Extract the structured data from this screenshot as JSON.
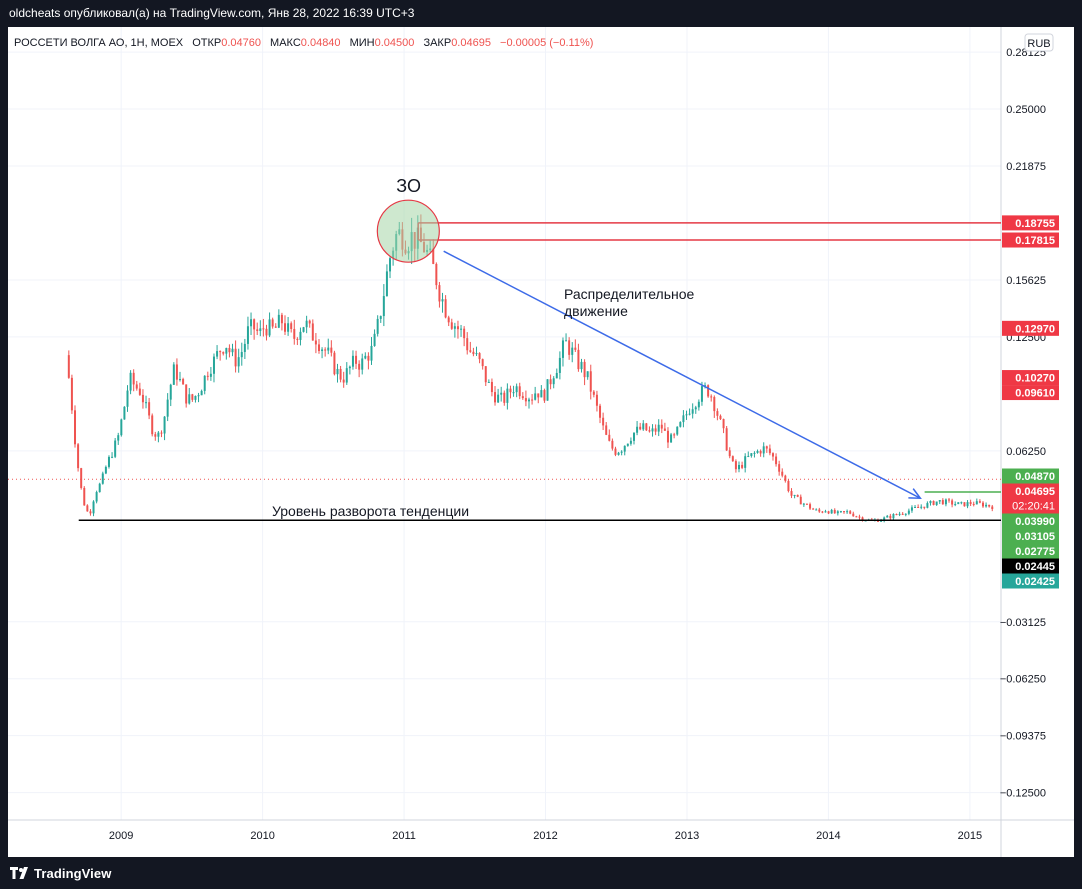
{
  "header": {
    "author_line": "oldcheats опубликовал(а) на TradingView.com, Янв 28, 2022 16:39 UTC+3"
  },
  "legend": {
    "symbol": "РОССЕТИ ВОЛГА АО, 1H, MOEX",
    "open_label": "ОТКР",
    "open_value": "0.04760",
    "high_label": "МАКС",
    "high_value": "0.04840",
    "low_label": "МИН",
    "low_value": "0.04500",
    "close_label": "ЗАКР",
    "close_value": "0.04695",
    "change": "−0.00005 (−0.11%)"
  },
  "currency": "RUB",
  "footer": {
    "brand": "TradingView"
  },
  "annotations": {
    "circle_label": "ЗО",
    "distribution": [
      "Распределительное",
      "движение"
    ],
    "reversal": "Уровень разворота тенденции"
  },
  "colors": {
    "up": "#26a69a",
    "down": "#ef5350",
    "trend_arrow": "#3d6be8",
    "level_line": "#e53945",
    "support_line": "#000000",
    "circle_fill": "#a5d6a7",
    "axis_text": "#131722",
    "grid": "#f0f3fa"
  },
  "price_badges": [
    {
      "label": "0.18755",
      "price": 0.18755,
      "color": "#ef3845",
      "text_color": "#ffffff"
    },
    {
      "label": "0.17815",
      "price": 0.17815,
      "color": "#ef3845",
      "text_color": "#ffffff"
    },
    {
      "label": "0.12970",
      "price": 0.1297,
      "color": "#ef3845",
      "text_color": "#ffffff"
    },
    {
      "label": "0.10270",
      "price": 0.1027,
      "color": "#ef3845",
      "text_color": "#ffffff"
    },
    {
      "label": "0.09610",
      "price": 0.0961,
      "color": "#ef3845",
      "text_color": "#ffffff"
    },
    {
      "label": "0.04870",
      "price": 0.0487,
      "color": "#4caf50",
      "text_color": "#ffffff"
    },
    {
      "label": "0.04695",
      "price": 0.04695,
      "color": "#ef3845",
      "text_color": "#ffffff",
      "sub": "02:20:41"
    },
    {
      "label": "0.03990",
      "price": 0.0399,
      "color": "#4caf50",
      "text_color": "#ffffff"
    },
    {
      "label": "0.03105",
      "price": 0.03105,
      "color": "#4caf50",
      "text_color": "#ffffff"
    },
    {
      "label": "0.02775",
      "price": 0.02775,
      "color": "#4caf50",
      "text_color": "#ffffff"
    },
    {
      "label": "0.02445",
      "price": 0.02445,
      "color": "#000000",
      "text_color": "#ffffff"
    },
    {
      "label": "0.02425",
      "price": 0.02425,
      "color": "#26a69a",
      "text_color": "#ffffff"
    }
  ],
  "chart_data": {
    "type": "candlestick",
    "title": "РОССЕТИ ВОЛГА АО, 1H, MOEX",
    "y_ticks": [
      "0.28125",
      "0.25000",
      "0.21875",
      "0.15625",
      "0.12500",
      "0.06250",
      "−0.03125",
      "−0.06250",
      "−0.09375",
      "−0.12500"
    ],
    "x_ticks": [
      "2009",
      "2010",
      "2011",
      "2012",
      "2013",
      "2014",
      "2015"
    ],
    "ylim": [
      -0.14,
      0.295
    ],
    "xlim": [
      2008.2,
      2015.22
    ],
    "close_path": [
      [
        2008.63,
        0.115
      ],
      [
        2008.66,
        0.098
      ],
      [
        2008.7,
        0.065
      ],
      [
        2008.73,
        0.045
      ],
      [
        2008.77,
        0.03
      ],
      [
        2008.8,
        0.028
      ],
      [
        2008.84,
        0.04
      ],
      [
        2008.88,
        0.045
      ],
      [
        2008.92,
        0.055
      ],
      [
        2008.96,
        0.062
      ],
      [
        2009.0,
        0.07
      ],
      [
        2009.04,
        0.085
      ],
      [
        2009.08,
        0.102
      ],
      [
        2009.12,
        0.098
      ],
      [
        2009.16,
        0.095
      ],
      [
        2009.2,
        0.085
      ],
      [
        2009.24,
        0.075
      ],
      [
        2009.28,
        0.07
      ],
      [
        2009.32,
        0.078
      ],
      [
        2009.36,
        0.095
      ],
      [
        2009.4,
        0.108
      ],
      [
        2009.44,
        0.1
      ],
      [
        2009.48,
        0.092
      ],
      [
        2009.52,
        0.09
      ],
      [
        2009.56,
        0.094
      ],
      [
        2009.6,
        0.1
      ],
      [
        2009.64,
        0.108
      ],
      [
        2009.68,
        0.112
      ],
      [
        2009.72,
        0.118
      ],
      [
        2009.76,
        0.122
      ],
      [
        2009.8,
        0.115
      ],
      [
        2009.84,
        0.112
      ],
      [
        2009.88,
        0.118
      ],
      [
        2009.92,
        0.128
      ],
      [
        2009.96,
        0.13
      ],
      [
        2010.0,
        0.126
      ],
      [
        2010.04,
        0.132
      ],
      [
        2010.08,
        0.128
      ],
      [
        2010.12,
        0.13
      ],
      [
        2010.16,
        0.134
      ],
      [
        2010.2,
        0.128
      ],
      [
        2010.24,
        0.124
      ],
      [
        2010.28,
        0.13
      ],
      [
        2010.32,
        0.133
      ],
      [
        2010.36,
        0.127
      ],
      [
        2010.4,
        0.125
      ],
      [
        2010.44,
        0.12
      ],
      [
        2010.48,
        0.116
      ],
      [
        2010.52,
        0.11
      ],
      [
        2010.56,
        0.104
      ],
      [
        2010.6,
        0.103
      ],
      [
        2010.64,
        0.108
      ],
      [
        2010.68,
        0.112
      ],
      [
        2010.72,
        0.11
      ],
      [
        2010.76,
        0.115
      ],
      [
        2010.8,
        0.118
      ],
      [
        2010.84,
        0.132
      ],
      [
        2010.88,
        0.15
      ],
      [
        2010.92,
        0.168
      ],
      [
        2010.96,
        0.18
      ],
      [
        2011.0,
        0.182
      ],
      [
        2011.04,
        0.178
      ],
      [
        2011.08,
        0.18
      ],
      [
        2011.12,
        0.177
      ],
      [
        2011.16,
        0.175
      ],
      [
        2011.2,
        0.168
      ],
      [
        2011.24,
        0.16
      ],
      [
        2011.28,
        0.148
      ],
      [
        2011.32,
        0.14
      ],
      [
        2011.36,
        0.134
      ],
      [
        2011.4,
        0.13
      ],
      [
        2011.44,
        0.126
      ],
      [
        2011.48,
        0.118
      ],
      [
        2011.52,
        0.115
      ],
      [
        2011.56,
        0.11
      ],
      [
        2011.6,
        0.102
      ],
      [
        2011.64,
        0.095
      ],
      [
        2011.68,
        0.092
      ],
      [
        2011.72,
        0.09
      ],
      [
        2011.76,
        0.094
      ],
      [
        2011.8,
        0.098
      ],
      [
        2011.84,
        0.096
      ],
      [
        2011.88,
        0.094
      ],
      [
        2011.92,
        0.092
      ],
      [
        2011.96,
        0.096
      ],
      [
        2012.0,
        0.092
      ],
      [
        2012.04,
        0.098
      ],
      [
        2012.08,
        0.106
      ],
      [
        2012.12,
        0.112
      ],
      [
        2012.16,
        0.122
      ],
      [
        2012.2,
        0.118
      ],
      [
        2012.24,
        0.112
      ],
      [
        2012.28,
        0.108
      ],
      [
        2012.32,
        0.102
      ],
      [
        2012.36,
        0.092
      ],
      [
        2012.4,
        0.082
      ],
      [
        2012.44,
        0.072
      ],
      [
        2012.48,
        0.065
      ],
      [
        2012.52,
        0.062
      ],
      [
        2012.56,
        0.064
      ],
      [
        2012.6,
        0.068
      ],
      [
        2012.64,
        0.072
      ],
      [
        2012.68,
        0.074
      ],
      [
        2012.72,
        0.075
      ],
      [
        2012.76,
        0.072
      ],
      [
        2012.8,
        0.074
      ],
      [
        2012.84,
        0.076
      ],
      [
        2012.88,
        0.07
      ],
      [
        2012.92,
        0.068
      ],
      [
        2012.96,
        0.074
      ],
      [
        2013.0,
        0.08
      ],
      [
        2013.04,
        0.086
      ],
      [
        2013.08,
        0.09
      ],
      [
        2013.12,
        0.094
      ],
      [
        2013.16,
        0.097
      ],
      [
        2013.2,
        0.092
      ],
      [
        2013.24,
        0.082
      ],
      [
        2013.28,
        0.072
      ],
      [
        2013.32,
        0.06
      ],
      [
        2013.36,
        0.052
      ],
      [
        2013.4,
        0.054
      ],
      [
        2013.44,
        0.058
      ],
      [
        2013.48,
        0.06
      ],
      [
        2013.52,
        0.062
      ],
      [
        2013.56,
        0.064
      ],
      [
        2013.6,
        0.062
      ],
      [
        2013.64,
        0.058
      ],
      [
        2013.68,
        0.052
      ],
      [
        2013.72,
        0.045
      ],
      [
        2013.76,
        0.038
      ],
      [
        2013.8,
        0.036
      ],
      [
        2013.84,
        0.034
      ],
      [
        2013.88,
        0.032
      ],
      [
        2013.92,
        0.03
      ],
      [
        2013.96,
        0.029
      ],
      [
        2014.0,
        0.03
      ],
      [
        2014.08,
        0.028
      ],
      [
        2014.16,
        0.029
      ],
      [
        2014.24,
        0.026
      ],
      [
        2014.32,
        0.024
      ],
      [
        2014.4,
        0.025
      ],
      [
        2014.48,
        0.027
      ],
      [
        2014.56,
        0.029
      ],
      [
        2014.64,
        0.031
      ],
      [
        2014.72,
        0.033
      ],
      [
        2014.8,
        0.035
      ],
      [
        2014.88,
        0.034
      ],
      [
        2014.96,
        0.033
      ],
      [
        2015.04,
        0.034
      ],
      [
        2015.12,
        0.033
      ],
      [
        2015.18,
        0.032
      ]
    ]
  }
}
